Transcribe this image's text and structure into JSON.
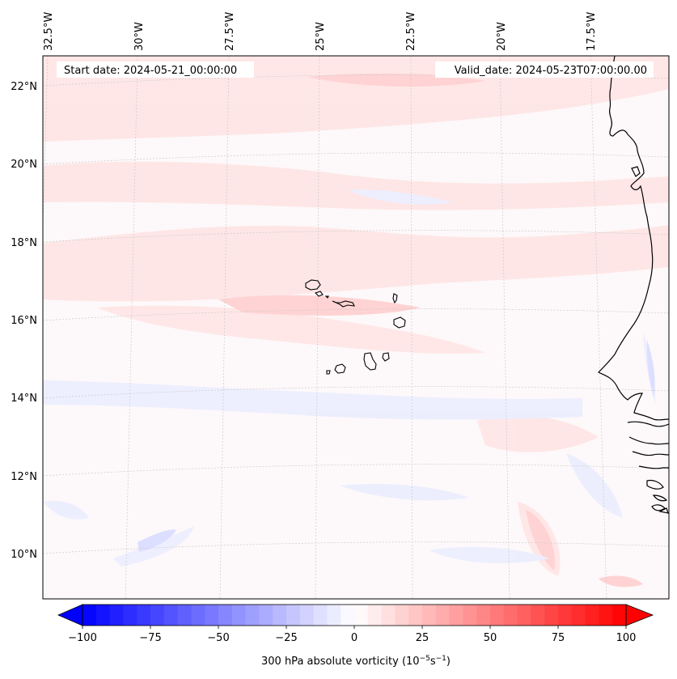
{
  "header": {
    "start_date": "Start date: 2024-05-21_00:00:00",
    "valid_date": "Valid_date: 2024-05-23T07:00:00.00"
  },
  "longitude_labels": [
    "32.5°W",
    "30°W",
    "27.5°W",
    "25°W",
    "22.5°W",
    "20°W",
    "17.5°W"
  ],
  "latitude_labels": [
    "22°N",
    "20°N",
    "18°N",
    "16°N",
    "14°N",
    "12°N",
    "10°N"
  ],
  "colorbar": {
    "min": -100,
    "max": 100,
    "cmap": "bwr",
    "ticks": [
      "−100",
      "−75",
      "−50",
      "−25",
      "0",
      "25",
      "50",
      "75",
      "100"
    ],
    "label_prefix": "300 hPa absolute vorticity (10",
    "label_exp1": "−5",
    "label_mid": "s",
    "label_exp2": "−1",
    "label_suffix": ")"
  },
  "colors": {
    "ocean_field": "#fbf7fb",
    "positive_light": "#ffe3e3",
    "negative_light": "#e9ebff",
    "coastline": "#000000",
    "gridline": "#b8b8b8"
  }
}
